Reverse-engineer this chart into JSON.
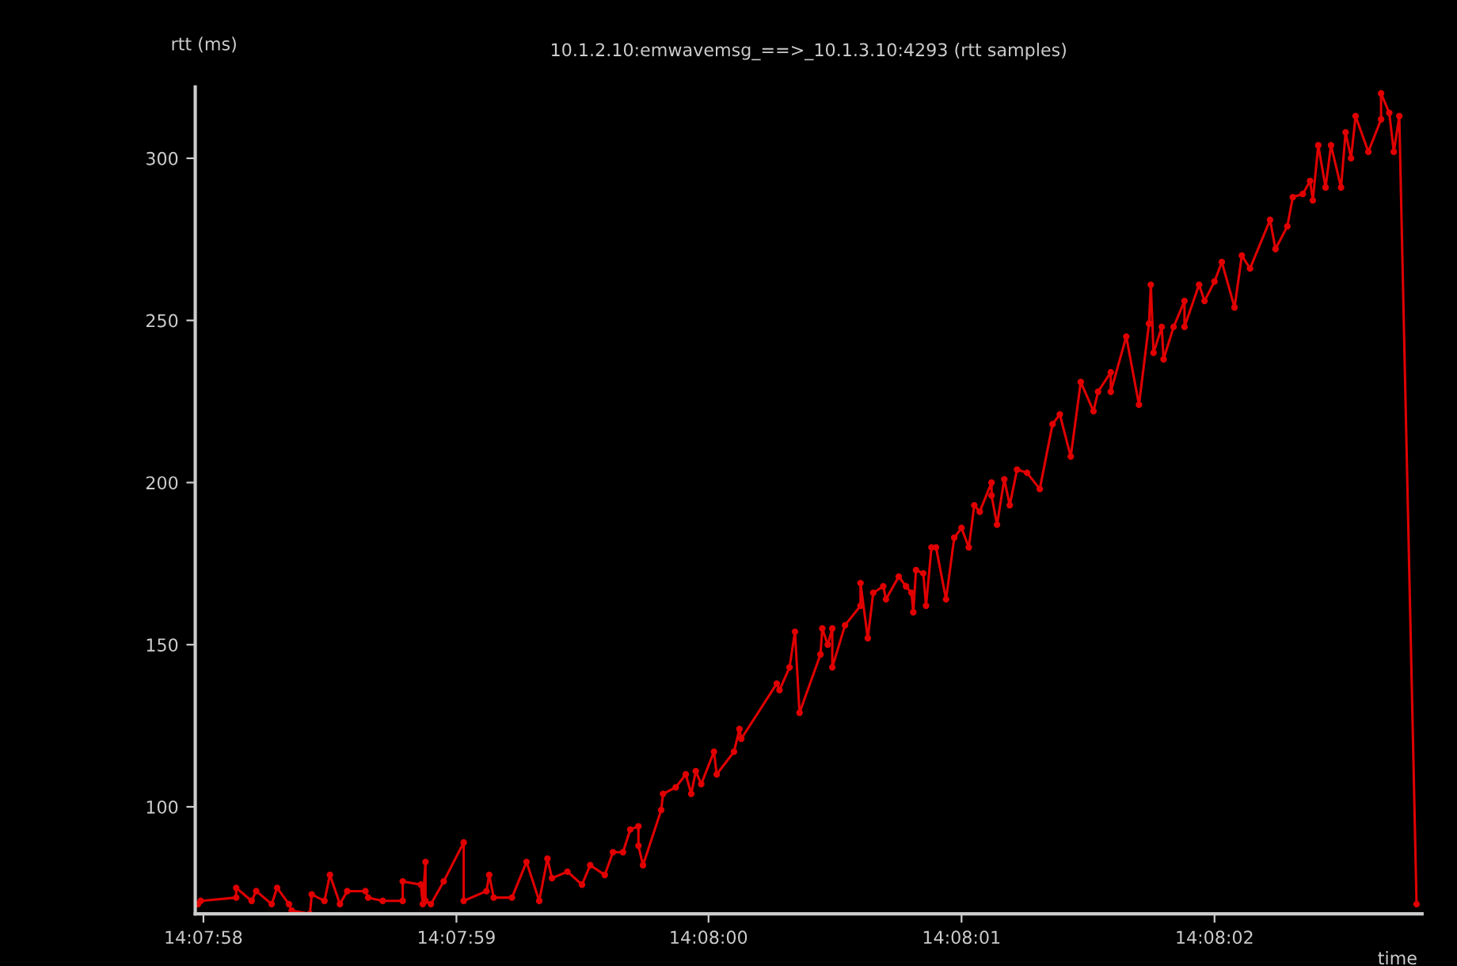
{
  "chart_data": {
    "type": "line",
    "title": "10.1.2.10:emwavemsg_==>_10.1.3.10:4293 (rtt samples)",
    "xlabel": "time",
    "ylabel": "rtt (ms)",
    "series": [
      {
        "color": "#e00000",
        "x": [
          14.132772,
          14.132775,
          14.132814,
          14.132814,
          14.132831,
          14.132836,
          14.132853,
          14.132859,
          14.132872,
          14.132875,
          14.132895,
          14.132897,
          14.132911,
          14.132917,
          14.132928,
          14.132936,
          14.132956,
          14.132959,
          14.132975,
          14.132997,
          14.132997,
          14.133017,
          14.133019,
          14.133022,
          14.133022,
          14.133028,
          14.133042,
          14.133064,
          14.133064,
          14.133089,
          14.133092,
          14.133097,
          14.133117,
          14.133133,
          14.133147,
          14.133156,
          14.133161,
          14.133178,
          14.133194,
          14.133203,
          14.133219,
          14.133228,
          14.133239,
          14.133247,
          14.133256,
          14.133256,
          14.133261,
          14.133281,
          14.133283,
          14.133297,
          14.133308,
          14.133314,
          14.133319,
          14.133325,
          14.133339,
          14.133342,
          14.133361,
          14.133367,
          14.133369,
          14.133408,
          14.133411,
          14.133422,
          14.133428,
          14.133433,
          14.133456,
          14.133458,
          14.133464,
          14.133469,
          14.133469,
          14.133483,
          14.1335,
          14.1335,
          14.133508,
          14.133514,
          14.133525,
          14.133528,
          14.133542,
          14.13355,
          14.133556,
          14.133558,
          14.133561,
          14.133569,
          14.133572,
          14.133578,
          14.133583,
          14.133594,
          14.133603,
          14.133611,
          14.133619,
          14.133625,
          14.133631,
          14.133644,
          14.133644,
          14.13365,
          14.133658,
          14.133664,
          14.133672,
          14.133683,
          14.133697,
          14.133711,
          14.133719,
          14.133731,
          14.133742,
          14.133756,
          14.133761,
          14.133775,
          14.133775,
          14.133792,
          14.133806,
          14.133817,
          14.133819,
          14.133822,
          14.133831,
          14.133833,
          14.133844,
          14.133856,
          14.133856,
          14.133872,
          14.133878,
          14.133889,
          14.133897,
          14.133911,
          14.133919,
          14.133928,
          14.13395,
          14.133956,
          14.133969,
          14.133975,
          14.133986,
          14.133994,
          14.133997,
          14.134003,
          14.134011,
          14.134017,
          14.134028,
          14.134033,
          14.134039,
          14.134044,
          14.134058,
          14.134072,
          14.134072,
          14.134081,
          14.134086,
          14.134092,
          14.134111
        ],
        "values": [
          70,
          71,
          72,
          75,
          71,
          74,
          70,
          75,
          70,
          68,
          67,
          73,
          71,
          79,
          70,
          74,
          74,
          72,
          71,
          71,
          77,
          76,
          70,
          83,
          71,
          70,
          77,
          89,
          71,
          74,
          79,
          72,
          72,
          83,
          71,
          84,
          78,
          80,
          76,
          82,
          79,
          86,
          86,
          93,
          94,
          88,
          82,
          99,
          104,
          106,
          110,
          104,
          111,
          107,
          117,
          110,
          117,
          124,
          121,
          138,
          136,
          143,
          154,
          129,
          147,
          155,
          150,
          155,
          143,
          156,
          162,
          169,
          152,
          166,
          168,
          164,
          171,
          168,
          166,
          160,
          173,
          172,
          162,
          180,
          180,
          164,
          183,
          186,
          180,
          193,
          191,
          200,
          196,
          187,
          201,
          193,
          204,
          203,
          198,
          218,
          221,
          208,
          231,
          222,
          228,
          234,
          228,
          245,
          224,
          249,
          261,
          240,
          248,
          238,
          248,
          256,
          248,
          261,
          256,
          262,
          268,
          254,
          270,
          266,
          281,
          272,
          279,
          288,
          289,
          293,
          287,
          304,
          291,
          304,
          291,
          308,
          300,
          313,
          302,
          312,
          320,
          314,
          302,
          313,
          70
        ]
      }
    ],
    "xlim": [
      14.132769,
      14.134117
    ],
    "ylim": [
      67,
      322
    ],
    "xticks": [
      {
        "value": 14.132778,
        "label": "14:07:58"
      },
      {
        "value": 14.133056,
        "label": "14:07:59"
      },
      {
        "value": 14.133333,
        "label": "14:08:00"
      },
      {
        "value": 14.133611,
        "label": "14:08:01"
      },
      {
        "value": 14.133889,
        "label": "14:08:02"
      }
    ],
    "yticks": [
      100,
      150,
      200,
      250,
      300
    ],
    "marker": "circle",
    "line_style": "solid",
    "grid": false,
    "legend": false
  }
}
